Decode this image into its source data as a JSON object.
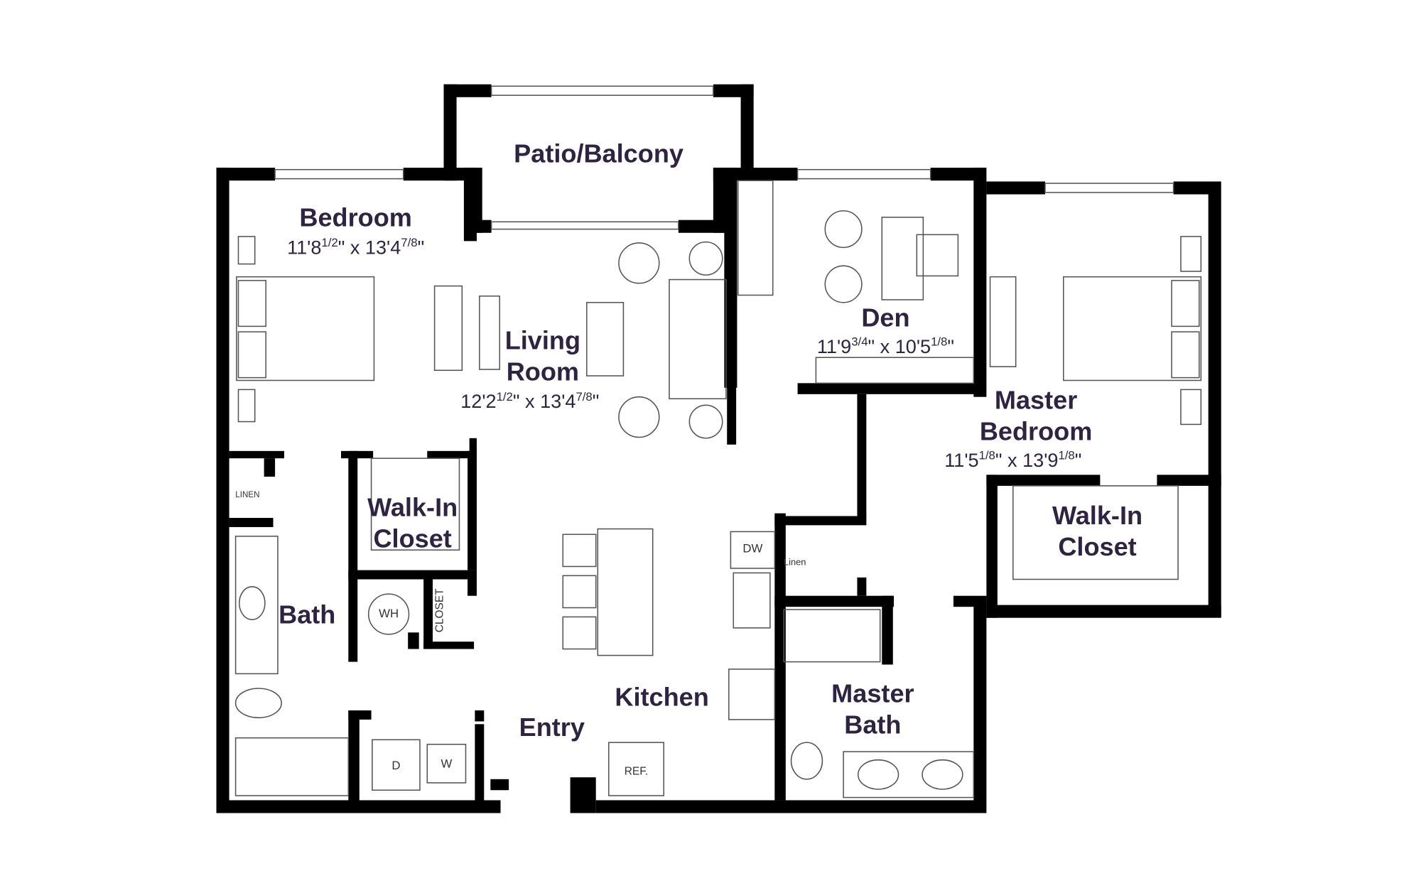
{
  "rooms": {
    "patio": {
      "label": "Patio/Balcony"
    },
    "bedroom": {
      "label": "Bedroom",
      "dimensions": [
        "11'8",
        "1/2",
        "\" x 13'4",
        "7/8",
        "\""
      ]
    },
    "living_room": {
      "label": [
        "Living",
        "Room"
      ],
      "dimensions": [
        "12'2",
        "1/2",
        "\" x 13'4",
        "7/8",
        "\""
      ]
    },
    "den": {
      "label": "Den",
      "dimensions": [
        "11'9",
        "3/4",
        "\" x 10'5",
        "1/8",
        "\""
      ]
    },
    "master_bedroom": {
      "label": [
        "Master",
        "Bedroom"
      ],
      "dimensions": [
        "11'5",
        "1/8",
        "\" x 13'9",
        "1/8",
        "\""
      ]
    },
    "walk_in_closet": {
      "label": [
        "Walk-In",
        "Closet"
      ]
    },
    "master_walk_in_closet": {
      "label": [
        "Walk-In",
        "Closet"
      ]
    },
    "bath": {
      "label": "Bath"
    },
    "kitchen": {
      "label": "Kitchen"
    },
    "entry": {
      "label": "Entry"
    },
    "master_bath": {
      "label": [
        "Master",
        "Bath"
      ]
    }
  },
  "fixtures": {
    "water_heater": "WH",
    "closet": "CLOSET",
    "linen": "LINEN",
    "master_linen": "Linen",
    "dishwasher": "DW",
    "dryer": "D",
    "washer": "W",
    "refrigerator": "REF."
  }
}
